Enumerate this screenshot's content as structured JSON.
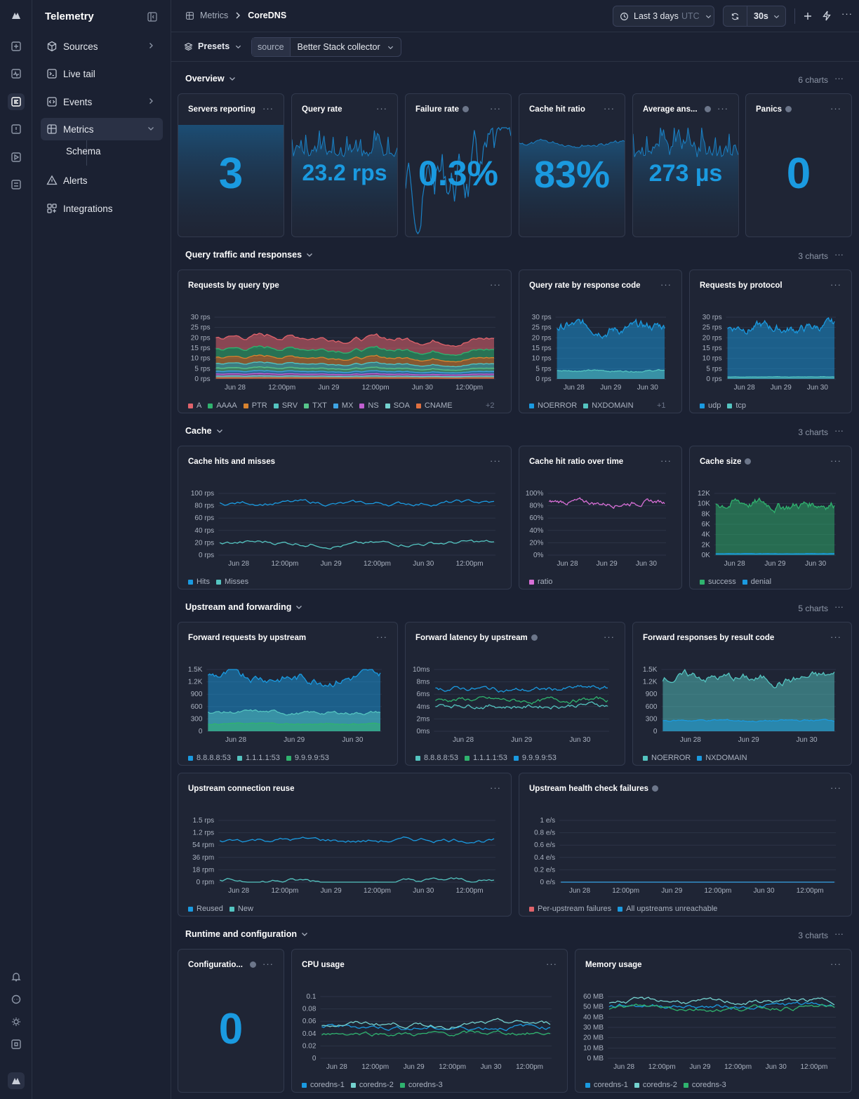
{
  "nav": {
    "title": "Telemetry",
    "items": [
      {
        "label": "Sources"
      },
      {
        "label": "Live tail"
      },
      {
        "label": "Events"
      },
      {
        "label": "Metrics"
      },
      {
        "label": "Alerts"
      },
      {
        "label": "Integrations"
      }
    ],
    "sub_item": "Schema"
  },
  "header": {
    "breadcrumb_parent": "Metrics",
    "breadcrumb_current": "CoreDNS",
    "time_range": "Last 3 days",
    "timezone": "UTC",
    "refresh_interval": "30s"
  },
  "filters": {
    "presets_label": "Presets",
    "source_key": "source",
    "source_value": "Better Stack collector"
  },
  "sections": [
    {
      "title": "Overview",
      "count": "6 charts"
    },
    {
      "title": "Query traffic and responses",
      "count": "3 charts"
    },
    {
      "title": "Cache",
      "count": "3 charts"
    },
    {
      "title": "Upstream and forwarding",
      "count": "5 charts"
    },
    {
      "title": "Runtime and configuration",
      "count": "3 charts"
    }
  ],
  "stats": [
    {
      "title": "Servers reporting",
      "value": "3"
    },
    {
      "title": "Query rate",
      "value": "23.2 rps"
    },
    {
      "title": "Failure rate",
      "value": "0.3%"
    },
    {
      "title": "Cache hit ratio",
      "value": "83%"
    },
    {
      "title": "Average ans...",
      "value": "273 µs"
    },
    {
      "title": "Panics",
      "value": "0"
    },
    {
      "title": "Configuratio...",
      "value": "0"
    }
  ],
  "colors": {
    "accent": "#1a9ae0",
    "background": "#1b2132",
    "card": "#1f2535"
  },
  "chart_data": [
    {
      "id": "req_query_type",
      "title": "Requests by query type",
      "type": "area",
      "x": [
        "Jun 28",
        "12:00pm",
        "Jun 29",
        "12:00pm",
        "Jun 30",
        "12:00pm"
      ],
      "yticks": [
        "0 rps",
        "5 rps",
        "10 rps",
        "15 rps",
        "20 rps",
        "25 rps",
        "30 rps"
      ],
      "ylim": [
        0,
        30
      ],
      "series": [
        {
          "name": "A",
          "color": "#e0636b",
          "approx": 5.5
        },
        {
          "name": "AAAA",
          "color": "#2fb36e",
          "approx": 4.0
        },
        {
          "name": "PTR",
          "color": "#d8832f",
          "approx": 3.0
        },
        {
          "name": "SRV",
          "color": "#54c4c0",
          "approx": 2.2
        },
        {
          "name": "TXT",
          "color": "#56c58a",
          "approx": 1.6
        },
        {
          "name": "MX",
          "color": "#3ea4e4",
          "approx": 1.3
        },
        {
          "name": "NS",
          "color": "#c05fd0",
          "approx": 1.0
        },
        {
          "name": "SOA",
          "color": "#74d2cf",
          "approx": 0.8
        },
        {
          "name": "CNAME",
          "color": "#e07040",
          "approx": 0.6
        }
      ],
      "legend_extra": "+2",
      "total_approx": 25
    },
    {
      "id": "rate_resp_code",
      "title": "Query rate by response code",
      "type": "area",
      "x": [
        "Jun 28",
        "Jun 29",
        "Jun 30"
      ],
      "yticks": [
        "0 rps",
        "5 rps",
        "10 rps",
        "15 rps",
        "20 rps",
        "25 rps",
        "30 rps"
      ],
      "ylim": [
        0,
        30
      ],
      "series": [
        {
          "name": "NOERROR",
          "color": "#1a9ae0",
          "approx": 25
        },
        {
          "name": "NXDOMAIN",
          "color": "#54c4c0",
          "approx": 4
        }
      ],
      "legend_extra": "+1"
    },
    {
      "id": "req_protocol",
      "title": "Requests by protocol",
      "type": "area",
      "x": [
        "Jun 28",
        "Jun 29",
        "Jun 30"
      ],
      "yticks": [
        "0 rps",
        "5 rps",
        "10 rps",
        "15 rps",
        "20 rps",
        "25 rps",
        "30 rps"
      ],
      "ylim": [
        0,
        30
      ],
      "series": [
        {
          "name": "udp",
          "color": "#1a9ae0",
          "approx": 25
        },
        {
          "name": "tcp",
          "color": "#54c4c0",
          "approx": 1
        }
      ]
    },
    {
      "id": "cache_hits",
      "title": "Cache hits and misses",
      "type": "line",
      "x": [
        "Jun 28",
        "12:00pm",
        "Jun 29",
        "12:00pm",
        "Jun 30",
        "12:00pm"
      ],
      "yticks": [
        "0 rps",
        "20 rps",
        "40 rps",
        "60 rps",
        "80 rps",
        "100 rps"
      ],
      "ylim": [
        0,
        100
      ],
      "series": [
        {
          "name": "Hits",
          "color": "#1a9ae0",
          "approx": 84
        },
        {
          "name": "Misses",
          "color": "#54c4c0",
          "approx": 19
        }
      ]
    },
    {
      "id": "cache_ratio",
      "title": "Cache hit ratio over time",
      "type": "line",
      "x": [
        "Jun 28",
        "Jun 29",
        "Jun 30"
      ],
      "yticks": [
        "0%",
        "20%",
        "40%",
        "60%",
        "80%",
        "100%"
      ],
      "ylim": [
        0,
        100
      ],
      "series": [
        {
          "name": "ratio",
          "color": "#d86fd6",
          "approx": 85
        }
      ]
    },
    {
      "id": "cache_size",
      "title": "Cache size",
      "type": "area",
      "x": [
        "Jun 28",
        "Jun 29",
        "Jun 30"
      ],
      "yticks": [
        "0K",
        "2K",
        "4K",
        "6K",
        "8K",
        "10K",
        "12K"
      ],
      "ylim": [
        0,
        12000
      ],
      "series": [
        {
          "name": "success",
          "color": "#2fb36e",
          "approx": 10000
        },
        {
          "name": "denial",
          "color": "#1a9ae0",
          "approx": 300
        }
      ]
    },
    {
      "id": "fwd_requests",
      "title": "Forward requests by upstream",
      "type": "area",
      "x": [
        "Jun 28",
        "Jun 29",
        "Jun 30"
      ],
      "yticks": [
        "0",
        "300",
        "600",
        "900",
        "1.2K",
        "1.5K"
      ],
      "ylim": [
        0,
        1500
      ],
      "series": [
        {
          "name": "8.8.8.8:53",
          "color": "#1a9ae0",
          "approx": 1320
        },
        {
          "name": "1.1.1.1:53",
          "color": "#54c4c0",
          "approx": 450
        },
        {
          "name": "9.9.9.9:53",
          "color": "#2fb36e",
          "approx": 180
        }
      ]
    },
    {
      "id": "fwd_latency",
      "title": "Forward latency by upstream",
      "type": "line",
      "x": [
        "Jun 28",
        "Jun 29",
        "Jun 30"
      ],
      "yticks": [
        "0ms",
        "2ms",
        "4ms",
        "6ms",
        "8ms",
        "10ms"
      ],
      "ylim": [
        0,
        10
      ],
      "series": [
        {
          "name": "8.8.8.8:53",
          "color": "#54c4c0",
          "approx": 4.2
        },
        {
          "name": "1.1.1.1:53",
          "color": "#2fb36e",
          "approx": 5.0
        },
        {
          "name": "9.9.9.9:53",
          "color": "#1a9ae0",
          "approx": 6.8
        }
      ]
    },
    {
      "id": "fwd_responses",
      "title": "Forward responses by result code",
      "type": "area",
      "x": [
        "Jun 28",
        "Jun 29",
        "Jun 30"
      ],
      "yticks": [
        "0",
        "300",
        "600",
        "900",
        "1.2K",
        "1.5K"
      ],
      "ylim": [
        0,
        1500
      ],
      "series": [
        {
          "name": "NOERROR",
          "color": "#54c4c0",
          "approx": 1280
        },
        {
          "name": "NXDOMAIN",
          "color": "#1a9ae0",
          "approx": 260
        }
      ]
    },
    {
      "id": "conn_reuse",
      "title": "Upstream connection reuse",
      "type": "line",
      "x": [
        "Jun 28",
        "12:00pm",
        "Jun 29",
        "12:00pm",
        "Jun 30",
        "12:00pm"
      ],
      "yticks": [
        "0 rpm",
        "18 rpm",
        "36 rpm",
        "54 rpm",
        "1.2 rps",
        "1.5 rps"
      ],
      "ylim": [
        0,
        5
      ],
      "series": [
        {
          "name": "Reused",
          "color": "#1a9ae0",
          "approx": 3.4
        },
        {
          "name": "New",
          "color": "#54c4c0",
          "approx": 0.05
        }
      ]
    },
    {
      "id": "health_fail",
      "title": "Upstream health check failures",
      "type": "line",
      "x": [
        "Jun 28",
        "12:00pm",
        "Jun 29",
        "12:00pm",
        "Jun 30",
        "12:00pm"
      ],
      "yticks": [
        "0 e/s",
        "0.2 e/s",
        "0.4 e/s",
        "0.6 e/s",
        "0.8 e/s",
        "1 e/s"
      ],
      "ylim": [
        0,
        1
      ],
      "series": [
        {
          "name": "Per-upstream failures",
          "color": "#e0636b",
          "approx": 0
        },
        {
          "name": "All upstreams unreachable",
          "color": "#1a9ae0",
          "approx": 0
        }
      ]
    },
    {
      "id": "cpu",
      "title": "CPU usage",
      "type": "line",
      "x": [
        "Jun 28",
        "12:00pm",
        "Jun 29",
        "12:00pm",
        "Jun 30",
        "12:00pm"
      ],
      "yticks": [
        "0",
        "0.02",
        "0.04",
        "0.06",
        "0.08",
        "0.1"
      ],
      "ylim": [
        0,
        0.1
      ],
      "series": [
        {
          "name": "coredns-1",
          "color": "#1a9ae0",
          "approx": 0.05
        },
        {
          "name": "coredns-2",
          "color": "#74d2cf",
          "approx": 0.055
        },
        {
          "name": "coredns-3",
          "color": "#2fb36e",
          "approx": 0.04
        }
      ]
    },
    {
      "id": "memory",
      "title": "Memory usage",
      "type": "line",
      "x": [
        "Jun 28",
        "12:00pm",
        "Jun 29",
        "12:00pm",
        "Jun 30",
        "12:00pm"
      ],
      "yticks": [
        "0 MB",
        "10 MB",
        "20 MB",
        "30 MB",
        "40 MB",
        "50 MB",
        "60 MB"
      ],
      "ylim": [
        0,
        60
      ],
      "series": [
        {
          "name": "coredns-1",
          "color": "#1a9ae0",
          "approx": 51
        },
        {
          "name": "coredns-2",
          "color": "#74d2cf",
          "approx": 55
        },
        {
          "name": "coredns-3",
          "color": "#2fb36e",
          "approx": 49
        }
      ]
    }
  ]
}
